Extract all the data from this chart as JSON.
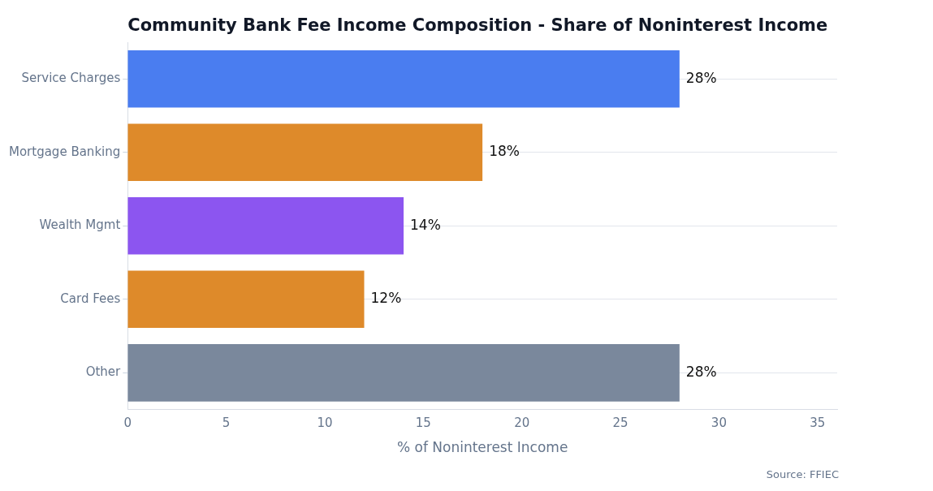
{
  "chart_data": {
    "type": "bar",
    "orientation": "horizontal",
    "title": "Community Bank Fee Income Composition - Share of Noninterest Income",
    "xlabel": "% of Noninterest Income",
    "categories": [
      "Service Charges",
      "Mortgage Banking",
      "Wealth Mgmt",
      "Card Fees",
      "Other"
    ],
    "values": [
      28,
      18,
      14,
      12,
      28
    ],
    "colors": [
      "#4a7df0",
      "#de8a2a",
      "#8c55f0",
      "#de8a2a",
      "#7a889c"
    ],
    "value_labels": [
      "28%",
      "18%",
      "14%",
      "12%",
      "28%"
    ],
    "xlim": [
      0,
      36
    ],
    "xticks": [
      0,
      5,
      10,
      15,
      20,
      25,
      30,
      35
    ],
    "grid": "y",
    "legend": false,
    "annotations": [
      "Source: FFIEC"
    ]
  }
}
